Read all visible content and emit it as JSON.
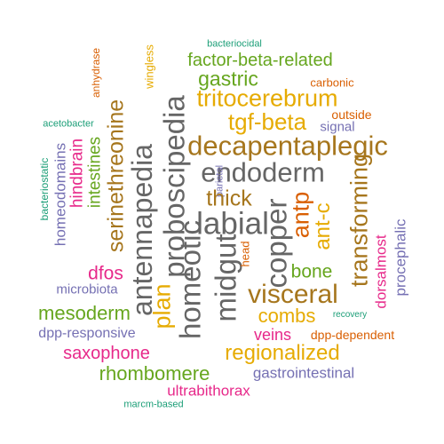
{
  "colors": {
    "background": "#ffffff",
    "teal": "#1b9e77",
    "orange": "#d95f02",
    "purple": "#7570b3",
    "magenta": "#e7298a",
    "green": "#66a61e",
    "gold": "#e6ab02",
    "brown": "#a6761d",
    "grey": "#666666"
  },
  "words": {
    "bacteriocidal": "bacteriocidal",
    "factor_beta_related": "factor-beta-related",
    "wingless": "wingless",
    "anhydrase": "anhydrase",
    "gastric": "gastric",
    "carbonic": "carbonic",
    "tritocerebrum": "tritocerebrum",
    "serinethreonine": "serinethreonine",
    "outside": "outside",
    "tgf_beta": "tgf-beta",
    "acetobacter": "acetobacter",
    "signal": "signal",
    "proboscipedia": "proboscipedia",
    "decapentaplegic": "decapentaplegic",
    "homeodomains": "homeodomains",
    "bacteriostatic": "bacteriostatic",
    "hindbrain": "hindbrain",
    "intestines": "intestines",
    "endoderm": "endoderm",
    "transforming": "transforming",
    "parietal": "parietal",
    "antennapedia": "antennapedia",
    "thick": "thick",
    "antp": "antp",
    "labial": "labial",
    "ant_c": "ant-c",
    "procephalic": "procephalic",
    "copper": "copper",
    "homeotic": "homeotic",
    "midgut": "midgut",
    "head": "head",
    "dorsalmost": "dorsalmost",
    "dfos": "dfos",
    "bone": "bone",
    "microbiota": "microbiota",
    "plan": "plan",
    "visceral": "visceral",
    "mesoderm": "mesoderm",
    "combs": "combs",
    "recovery": "recovery",
    "dpp_responsive": "dpp-responsive",
    "veins": "veins",
    "dpp_dependent": "dpp-dependent",
    "saxophone": "saxophone",
    "regionalized": "regionalized",
    "rhombomere": "rhombomere",
    "gastrointestinal": "gastrointestinal",
    "ultrabithorax": "ultrabithorax",
    "marcm_based": "marcm-based"
  }
}
